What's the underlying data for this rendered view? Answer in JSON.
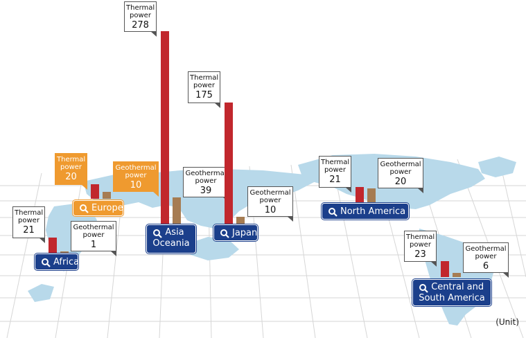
{
  "colors": {
    "thermal": "#c1272d",
    "geothermal": "#a67c52",
    "button_blue": "#1b3f8b",
    "highlight_orange": "#ef9a2f",
    "land": "#b8d9ea"
  },
  "unit_label": "(Unit)",
  "regions": {
    "europe": {
      "button": "Europe",
      "highlighted": true,
      "thermal": {
        "label": [
          "Thermal",
          "power"
        ],
        "value": "20"
      },
      "geothermal": {
        "label": [
          "Geothermal",
          "power"
        ],
        "value": "10"
      }
    },
    "africa": {
      "button": "Africa",
      "thermal": {
        "label": [
          "Thermal",
          "power"
        ],
        "value": "21"
      },
      "geothermal": {
        "label": [
          "Geothermal",
          "power"
        ],
        "value": "1"
      }
    },
    "asia_oceania": {
      "button": [
        "Asia",
        "Oceania"
      ],
      "thermal": {
        "label": [
          "Thermal",
          "power"
        ],
        "value": "278"
      },
      "geothermal": {
        "label": [
          "Geothermal",
          "power"
        ],
        "value": "39"
      }
    },
    "japan": {
      "button": "Japan",
      "thermal": {
        "label": [
          "Thermal",
          "power"
        ],
        "value": "175"
      },
      "geothermal": {
        "label": [
          "Geothermal",
          "power"
        ],
        "value": "10"
      }
    },
    "north_america": {
      "button": "North America",
      "thermal": {
        "label": [
          "Thermal",
          "power"
        ],
        "value": "21"
      },
      "geothermal": {
        "label": [
          "Geothermal",
          "power"
        ],
        "value": "20"
      }
    },
    "central_south_america": {
      "button": [
        "Central and",
        "South America"
      ],
      "thermal": {
        "label": [
          "Thermal",
          "power"
        ],
        "value": "23"
      },
      "geothermal": {
        "label": [
          "Geothermal",
          "power"
        ],
        "value": "6"
      }
    }
  }
}
